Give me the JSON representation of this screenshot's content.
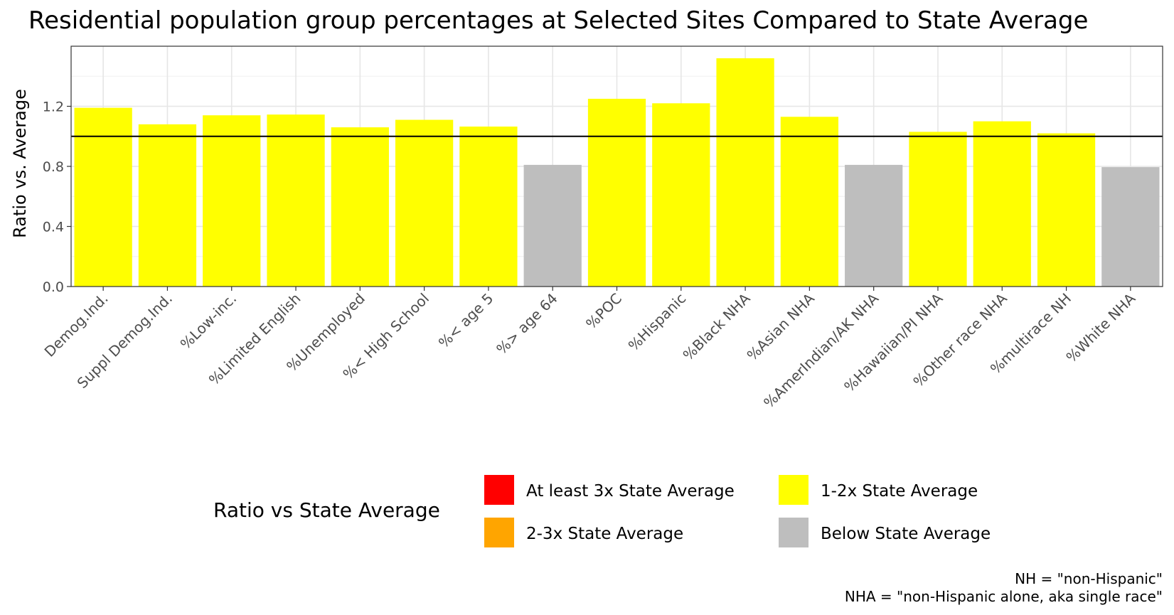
{
  "chart_data": {
    "type": "bar",
    "title": "Residential population group percentages at Selected Sites Compared to State Average",
    "ylabel": "Ratio vs. Average",
    "xlabel": "",
    "categories": [
      "Demog.Ind.",
      "Suppl Demog.Ind.",
      "%Low-inc.",
      "%Limited English",
      "%Unemployed",
      "%< High School",
      "%< age 5",
      "%> age 64",
      "%POC",
      "%Hispanic",
      "%Black NHA",
      "%Asian NHA",
      "%AmerIndian/AK NHA",
      "%Hawaiian/PI NHA",
      "%Other race NHA",
      "%multirace NH",
      "%White NHA"
    ],
    "values": [
      1.19,
      1.08,
      1.14,
      1.145,
      1.06,
      1.11,
      1.065,
      0.81,
      1.25,
      1.22,
      1.52,
      1.13,
      0.81,
      1.03,
      1.1,
      1.02,
      0.795
    ],
    "fill_classes": [
      "1-2x State Average",
      "1-2x State Average",
      "1-2x State Average",
      "1-2x State Average",
      "1-2x State Average",
      "1-2x State Average",
      "1-2x State Average",
      "Below State Average",
      "1-2x State Average",
      "1-2x State Average",
      "1-2x State Average",
      "1-2x State Average",
      "Below State Average",
      "1-2x State Average",
      "1-2x State Average",
      "1-2x State Average",
      "Below State Average"
    ],
    "ylim": [
      0,
      1.6
    ],
    "yticks": [
      0.0,
      0.4,
      0.8,
      1.2
    ],
    "ytick_labels": [
      "0.0",
      "0.4",
      "0.8",
      "1.2"
    ],
    "reference_line": 1.0,
    "grid": true,
    "legend": {
      "title": "Ratio vs State Average",
      "placement": "bottom",
      "entries": [
        {
          "label": "At least 3x State Average",
          "color": "#ff0000"
        },
        {
          "label": "2-3x State Average",
          "color": "#ffa500"
        },
        {
          "label": "1-2x State Average",
          "color": "#ffff00"
        },
        {
          "label": "Below State Average",
          "color": "#bebebe"
        }
      ]
    },
    "colors": {
      "At least 3x State Average": "#ff0000",
      "2-3x State Average": "#ffa500",
      "1-2x State Average": "#ffff00",
      "Below State Average": "#bebebe"
    }
  },
  "footnotes": {
    "nh": "NH = \"non-Hispanic\"",
    "nha": "NHA = \"non-Hispanic alone, aka single race\""
  }
}
